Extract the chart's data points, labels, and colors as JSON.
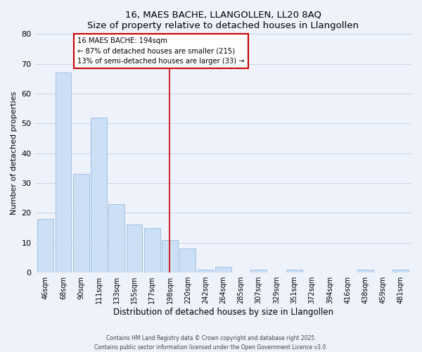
{
  "title": "16, MAES BACHE, LLANGOLLEN, LL20 8AQ",
  "subtitle": "Size of property relative to detached houses in Llangollen",
  "xlabel": "Distribution of detached houses by size in Llangollen",
  "ylabel": "Number of detached properties",
  "bar_labels": [
    "46sqm",
    "68sqm",
    "90sqm",
    "111sqm",
    "133sqm",
    "155sqm",
    "177sqm",
    "198sqm",
    "220sqm",
    "242sqm",
    "264sqm",
    "285sqm",
    "307sqm",
    "329sqm",
    "351sqm",
    "372sqm",
    "394sqm",
    "416sqm",
    "438sqm",
    "459sqm",
    "481sqm"
  ],
  "bar_values": [
    18,
    67,
    33,
    52,
    23,
    16,
    15,
    11,
    8,
    1,
    2,
    0,
    1,
    0,
    1,
    0,
    0,
    0,
    1,
    0,
    1
  ],
  "bar_color": "#ccdff5",
  "bar_edge_color": "#99bbdd",
  "grid_color": "#c8d4e8",
  "background_color": "#eef2fa",
  "vline_color": "#cc0000",
  "annotation_title": "16 MAES BACHE: 194sqm",
  "annotation_line1": "← 87% of detached houses are smaller (215)",
  "annotation_line2": "13% of semi-detached houses are larger (33) →",
  "annotation_box_edge": "#cc0000",
  "ylim": [
    0,
    80
  ],
  "yticks": [
    0,
    10,
    20,
    30,
    40,
    50,
    60,
    70,
    80
  ],
  "footer1": "Contains HM Land Registry data © Crown copyright and database right 2025.",
  "footer2": "Contains public sector information licensed under the Open Government Licence v3.0."
}
